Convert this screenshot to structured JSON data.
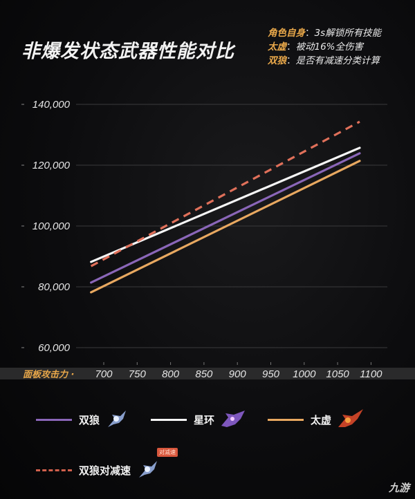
{
  "title": "非爆发状态武器性能对比",
  "notes": [
    {
      "key": "角色自身",
      "sep": "：",
      "value": "3s解锁所有技能"
    },
    {
      "key": "太虚",
      "sep": "：",
      "value": "被动16%全伤害"
    },
    {
      "key": "双狼",
      "sep": "：",
      "value": "是否有减速分类计算"
    }
  ],
  "x_axis_label": "面板攻击力",
  "legend": [
    {
      "label": "双狼",
      "color": "#8a66b8",
      "style": "solid",
      "icon": "weapon-twin-wolves-icon"
    },
    {
      "label": "星环",
      "color": "#f5f5f5",
      "style": "solid",
      "icon": "weapon-star-ring-icon"
    },
    {
      "label": "太虚",
      "color": "#e8a860",
      "style": "solid",
      "icon": "weapon-taixu-icon"
    },
    {
      "label": "双狼对减速",
      "color": "#e0705a",
      "style": "dashed",
      "icon": "weapon-twin-wolves-icon",
      "badge": "对减速"
    }
  ],
  "watermark": "九游",
  "chart_data": {
    "type": "line",
    "title": "非爆发状态武器性能对比",
    "xlabel": "面板攻击力",
    "ylabel": "",
    "x_ticks": [
      700,
      750,
      800,
      850,
      900,
      950,
      1000,
      1050,
      1100
    ],
    "y_ticks": [
      60000,
      80000,
      100000,
      120000,
      140000
    ],
    "y_tick_labels": [
      "60,000",
      "80,000",
      "100,000",
      "120,000",
      "140,000"
    ],
    "xlim": [
      680,
      1100
    ],
    "ylim": [
      60000,
      140000
    ],
    "grid": "horizontal",
    "legend_position": "bottom",
    "series": [
      {
        "name": "双狼",
        "style": "solid",
        "color": "#8a66b8",
        "x": [
          681,
          1083
        ],
        "y": [
          81400,
          123900
        ]
      },
      {
        "name": "星环",
        "style": "solid",
        "color": "#f5f5f5",
        "x": [
          681,
          1083
        ],
        "y": [
          88200,
          125700
        ]
      },
      {
        "name": "太虚",
        "style": "solid",
        "color": "#e8a860",
        "x": [
          681,
          1083
        ],
        "y": [
          78200,
          121400
        ]
      },
      {
        "name": "双狼对减速",
        "style": "dashed",
        "color": "#e0705a",
        "x": [
          681,
          1083
        ],
        "y": [
          86800,
          134300
        ]
      }
    ]
  }
}
